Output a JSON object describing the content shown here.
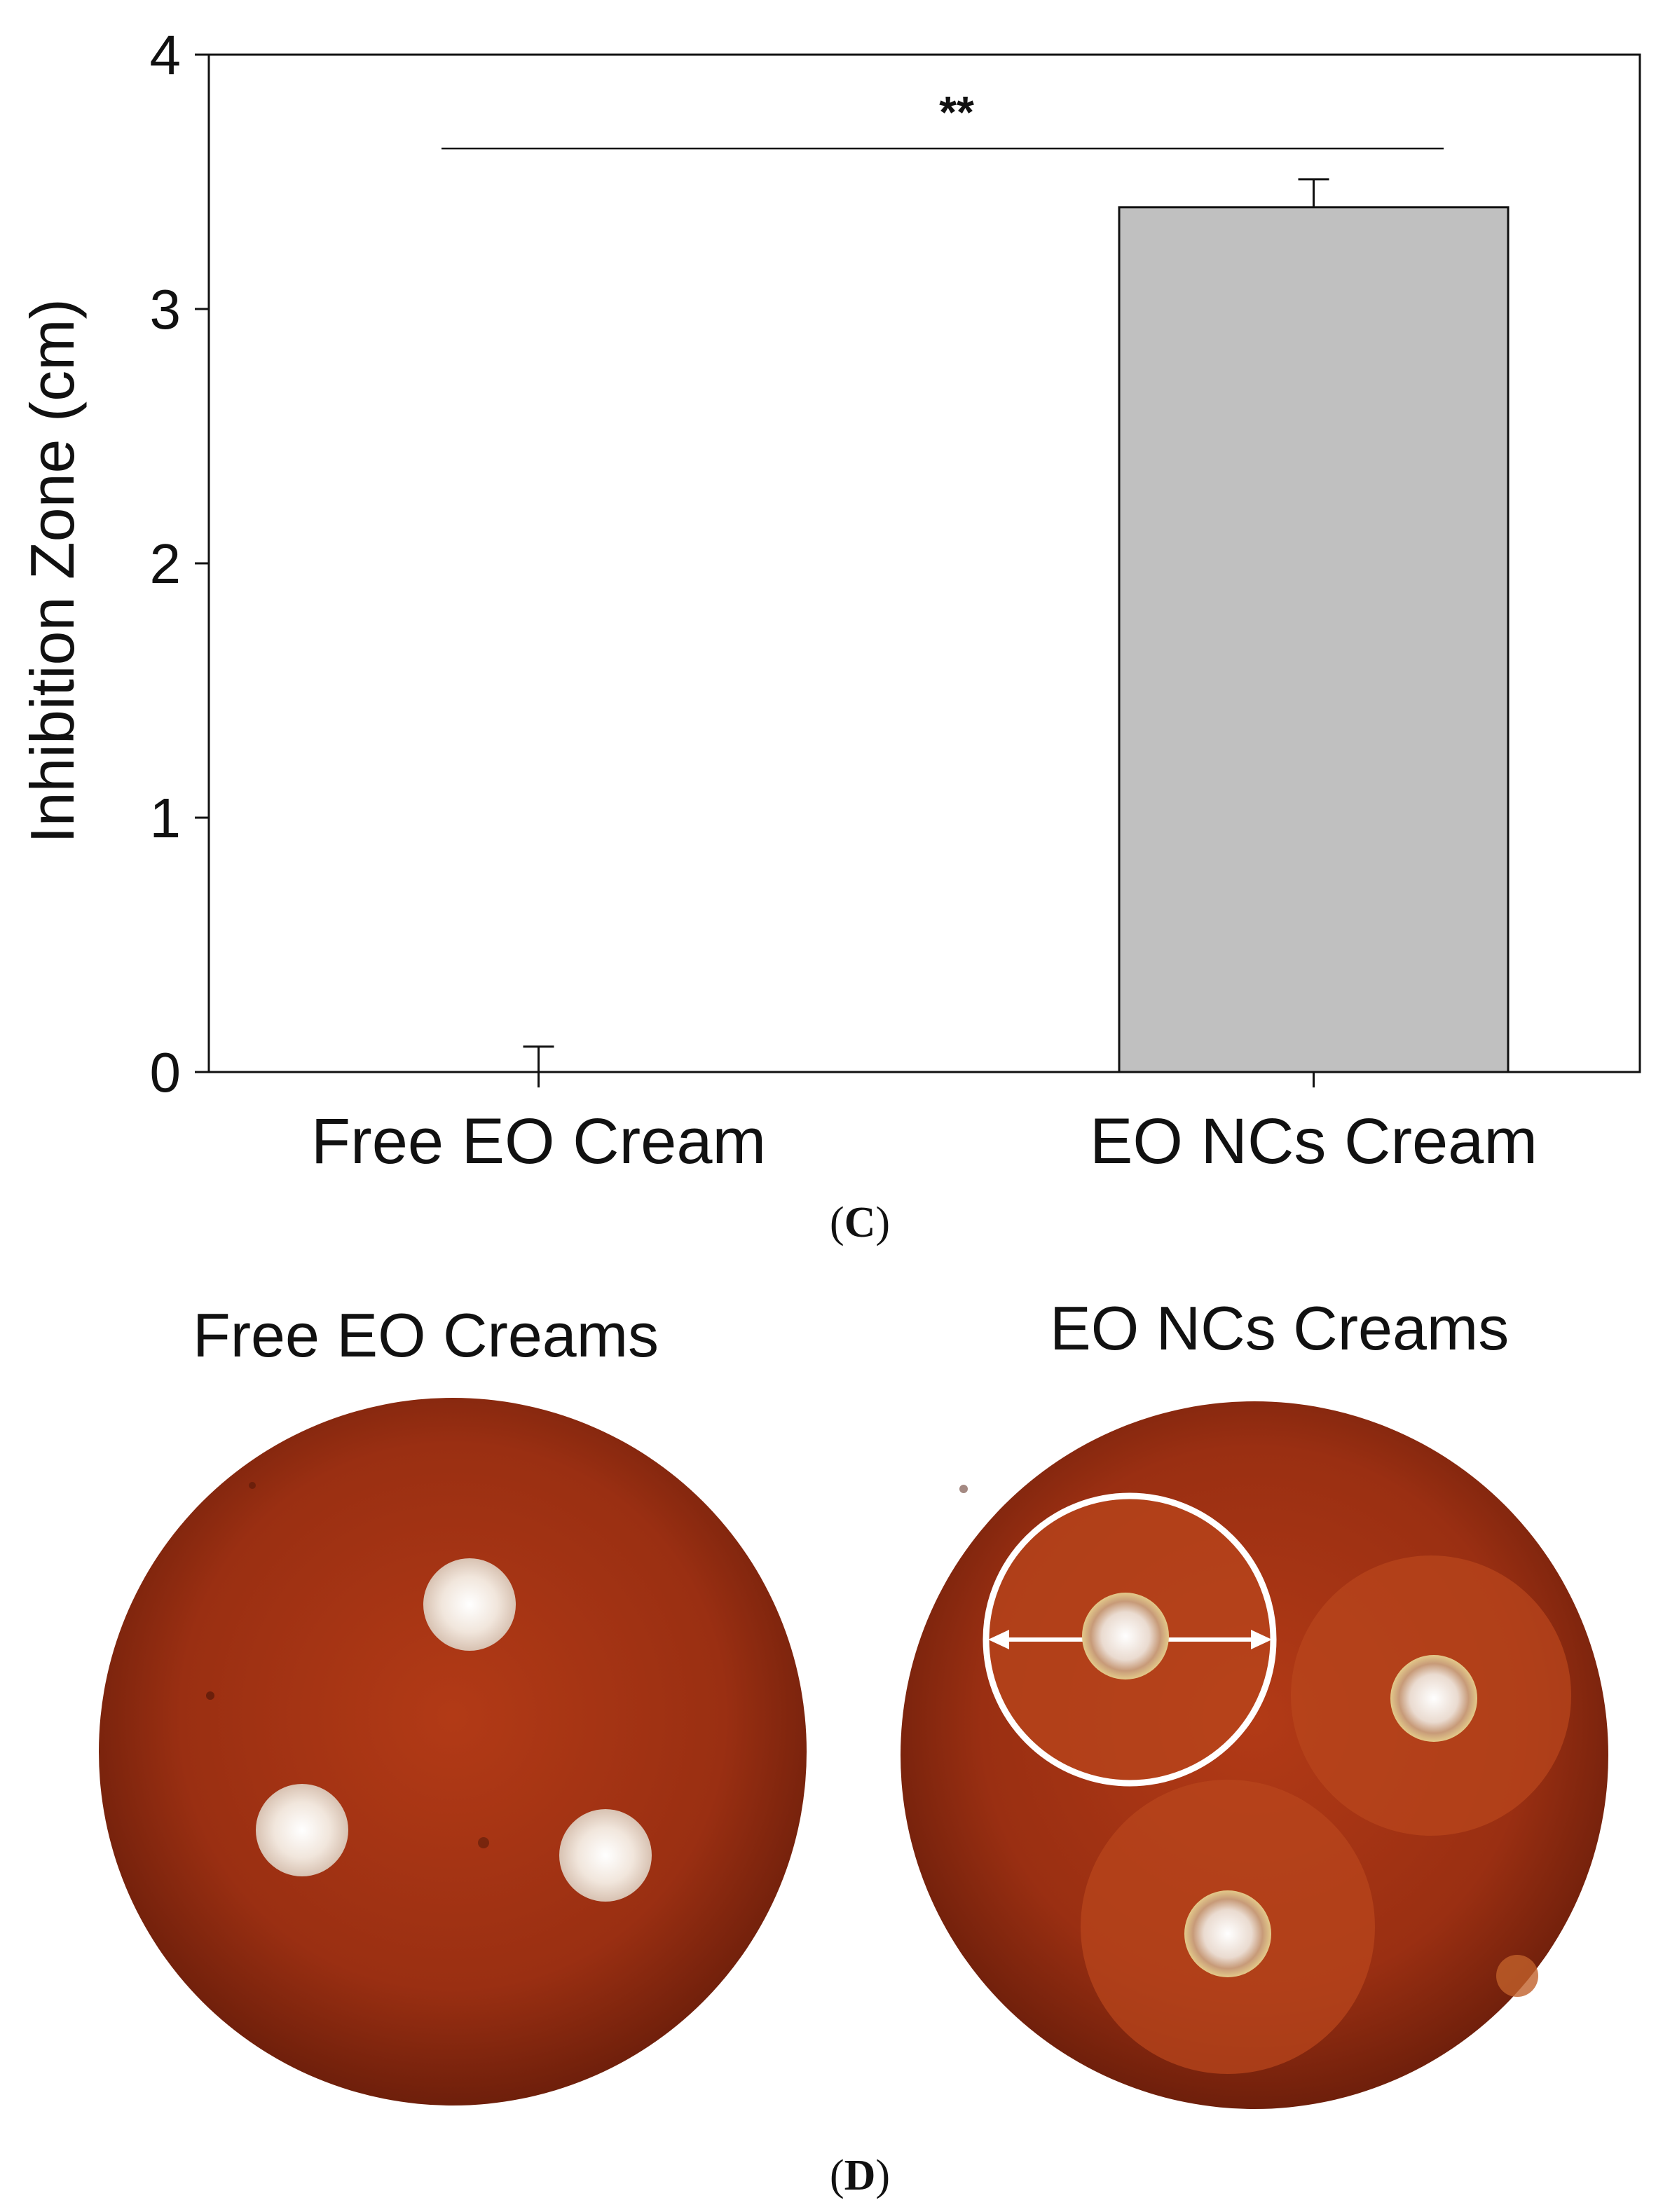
{
  "chart_data": {
    "type": "bar",
    "categories": [
      "Free EO Cream",
      "EO NCs Cream"
    ],
    "values": [
      0,
      3.4
    ],
    "errors": [
      0.1,
      0.11
    ],
    "ylabel": "Inhibition Zone (cm)",
    "xlabel": "",
    "ylim": [
      0,
      4
    ],
    "yticks": [
      0,
      1,
      2,
      3,
      4
    ],
    "bar_color": "#c0c0c0",
    "significance": "**",
    "grid": false
  },
  "panel_c_label": {
    "open": "(",
    "letter": "C",
    "close": ")"
  },
  "panel_d_label": {
    "open": "(",
    "letter": "D",
    "close": ")"
  },
  "photos": {
    "left_title": "Free EO Creams",
    "right_title": "EO NCs Creams",
    "plate_color": "#9a2f12",
    "zone_color": "#b8461c"
  }
}
